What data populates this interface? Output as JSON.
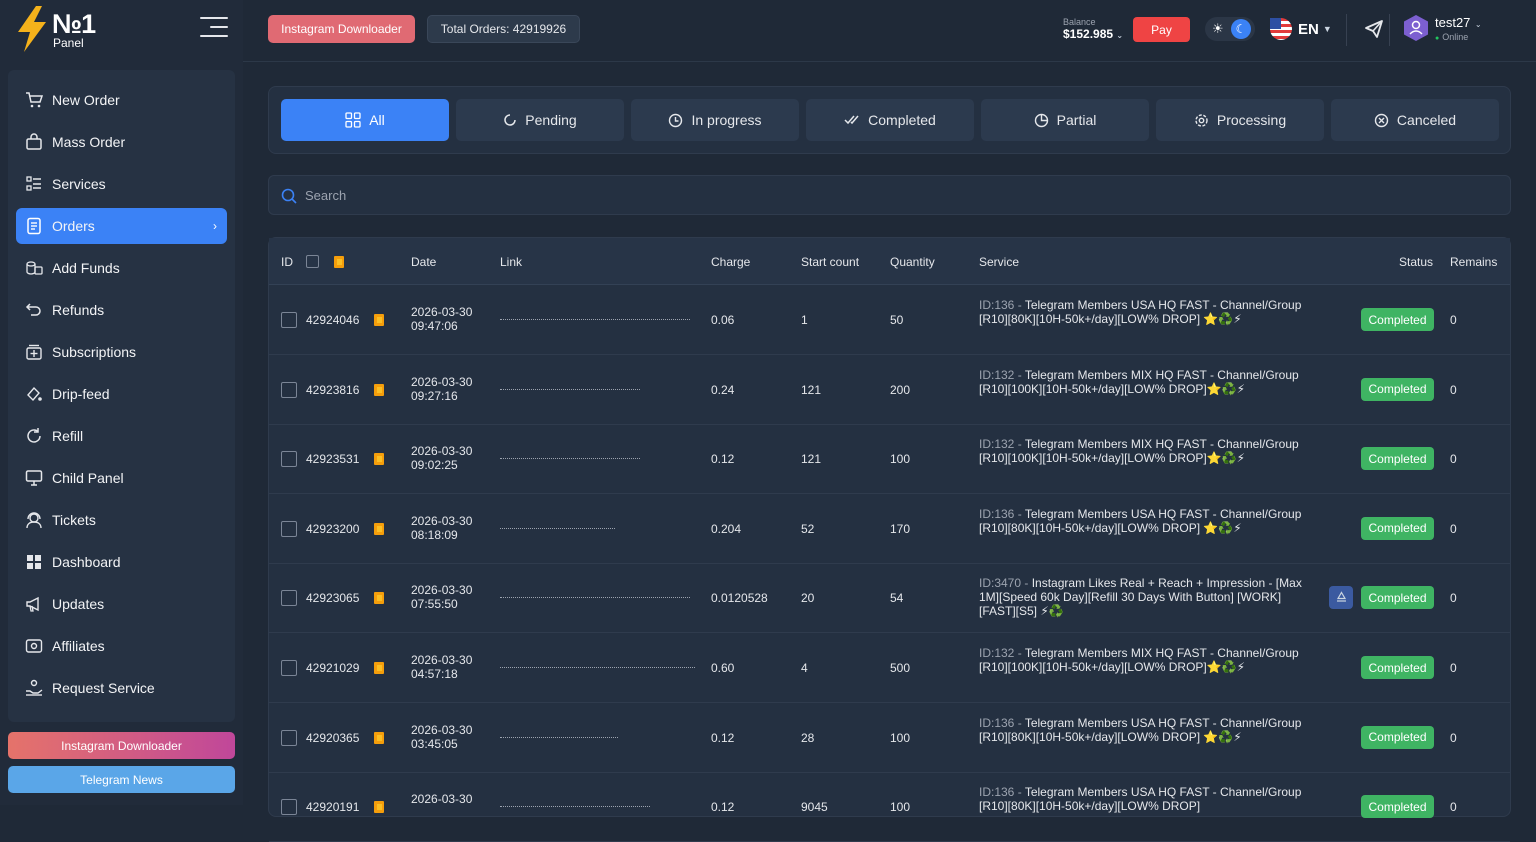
{
  "brand": {
    "logo_main": "№1",
    "logo_sub": "Panel"
  },
  "sidebar": {
    "items": [
      {
        "label": "New Order",
        "icon": "cart-icon"
      },
      {
        "label": "Mass Order",
        "icon": "bag-icon"
      },
      {
        "label": "Services",
        "icon": "list-icon"
      },
      {
        "label": "Orders",
        "icon": "document-icon",
        "active": true
      },
      {
        "label": "Add Funds",
        "icon": "coins-icon"
      },
      {
        "label": "Refunds",
        "icon": "undo-icon"
      },
      {
        "label": "Subscriptions",
        "icon": "subscription-icon"
      },
      {
        "label": "Drip-feed",
        "icon": "drop-icon"
      },
      {
        "label": "Refill",
        "icon": "refresh-icon"
      },
      {
        "label": "Child Panel",
        "icon": "monitor-icon"
      },
      {
        "label": "Tickets",
        "icon": "headset-icon"
      },
      {
        "label": "Dashboard",
        "icon": "grid-icon"
      },
      {
        "label": "Updates",
        "icon": "megaphone-icon"
      },
      {
        "label": "Affiliates",
        "icon": "wallet-icon"
      },
      {
        "label": "Request Service",
        "icon": "hand-icon"
      }
    ],
    "promo_instagram": "Instagram Downloader",
    "promo_telegram": "Telegram News"
  },
  "topbar": {
    "instagram_button": "Instagram Downloader",
    "total_orders": "Total Orders: 42919926",
    "balance_label": "Balance",
    "balance_value": "$152.985",
    "pay_label": "Pay",
    "language": "EN",
    "username": "test27",
    "user_status": "Online"
  },
  "filters": {
    "tabs": [
      {
        "label": "All",
        "active": true
      },
      {
        "label": "Pending"
      },
      {
        "label": "In progress"
      },
      {
        "label": "Completed"
      },
      {
        "label": "Partial"
      },
      {
        "label": "Processing"
      },
      {
        "label": "Canceled"
      }
    ]
  },
  "search": {
    "placeholder": "Search"
  },
  "table": {
    "headers": {
      "id": "ID",
      "date": "Date",
      "link": "Link",
      "charge": "Charge",
      "start_count": "Start count",
      "quantity": "Quantity",
      "service": "Service",
      "status": "Status",
      "remains": "Remains"
    },
    "rows": [
      {
        "id": "42924046",
        "date": "2026-03-30",
        "time": "09:47:06",
        "charge": "0.06",
        "start_count": "1",
        "quantity": "50",
        "service_id": "ID:136 - ",
        "service": "Telegram Members USA HQ FAST - Channel/Group [R10][80K][10H-50k+/day][LOW% DROP] ⭐♻️⚡",
        "status": "Completed",
        "remains": "0"
      },
      {
        "id": "42923816",
        "date": "2026-03-30",
        "time": "09:27:16",
        "charge": "0.24",
        "start_count": "121",
        "quantity": "200",
        "service_id": "ID:132 - ",
        "service": "Telegram Members MIX HQ FAST - Channel/Group [R10][100K][10H-50k+/day][LOW% DROP]⭐♻️⚡",
        "status": "Completed",
        "remains": "0"
      },
      {
        "id": "42923531",
        "date": "2026-03-30",
        "time": "09:02:25",
        "charge": "0.12",
        "start_count": "121",
        "quantity": "100",
        "service_id": "ID:132 - ",
        "service": "Telegram Members MIX HQ FAST - Channel/Group [R10][100K][10H-50k+/day][LOW% DROP]⭐♻️⚡",
        "status": "Completed",
        "remains": "0"
      },
      {
        "id": "42923200",
        "date": "2026-03-30",
        "time": "08:18:09",
        "charge": "0.204",
        "start_count": "52",
        "quantity": "170",
        "service_id": "ID:136 - ",
        "service": "Telegram Members USA HQ FAST - Channel/Group [R10][80K][10H-50k+/day][LOW% DROP] ⭐♻️⚡",
        "status": "Completed",
        "remains": "0"
      },
      {
        "id": "42923065",
        "date": "2026-03-30",
        "time": "07:55:50",
        "charge": "0.0120528",
        "start_count": "20",
        "quantity": "54",
        "service_id": "ID:3470 - ",
        "service": "Instagram Likes Real + Reach + Impression - [Max 1M][Speed 60k Day][Refill 30 Days With Button] [WORK][FAST][S5] ⚡♻️",
        "status": "Completed",
        "remains": "0",
        "refill": true
      },
      {
        "id": "42921029",
        "date": "2026-03-30",
        "time": "04:57:18",
        "charge": "0.60",
        "start_count": "4",
        "quantity": "500",
        "service_id": "ID:132 - ",
        "service": "Telegram Members MIX HQ FAST - Channel/Group [R10][100K][10H-50k+/day][LOW% DROP]⭐♻️⚡",
        "status": "Completed",
        "remains": "0"
      },
      {
        "id": "42920365",
        "date": "2026-03-30",
        "time": "03:45:05",
        "charge": "0.12",
        "start_count": "28",
        "quantity": "100",
        "service_id": "ID:136 - ",
        "service": "Telegram Members USA HQ FAST - Channel/Group [R10][80K][10H-50k+/day][LOW% DROP] ⭐♻️⚡",
        "status": "Completed",
        "remains": "0"
      },
      {
        "id": "42920191",
        "date": "2026-03-30",
        "time": "",
        "charge": "0.12",
        "start_count": "9045",
        "quantity": "100",
        "service_id": "ID:136 - ",
        "service": "Telegram Members USA HQ FAST - Channel/Group [R10][80K][10H-50k+/day][LOW% DROP]",
        "status": "Completed",
        "remains": "0"
      }
    ]
  },
  "colors": {
    "accent": "#3b82f6",
    "success": "#3fb463",
    "danger": "#ef4444"
  }
}
